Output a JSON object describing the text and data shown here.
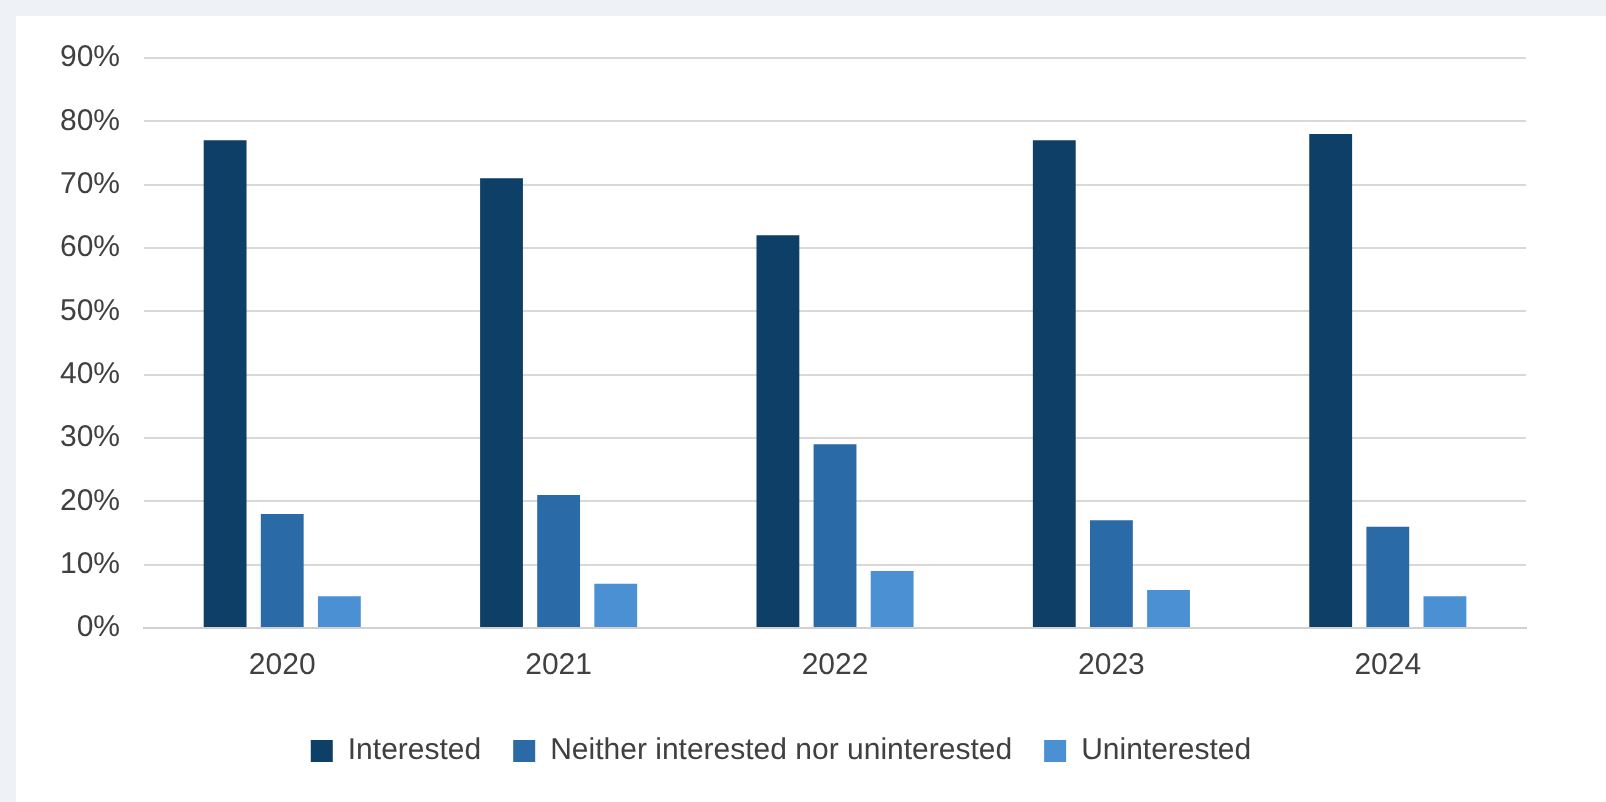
{
  "chart_data": {
    "type": "bar",
    "categories": [
      "2020",
      "2021",
      "2022",
      "2023",
      "2024"
    ],
    "series": [
      {
        "name": "Interested",
        "color": "#0e3f66",
        "values": [
          77,
          71,
          62,
          77,
          78
        ]
      },
      {
        "name": "Neither interested nor uninterested",
        "color": "#2a6aa6",
        "values": [
          18,
          21,
          29,
          17,
          16
        ]
      },
      {
        "name": "Uninterested",
        "color": "#4a90d2",
        "values": [
          5,
          7,
          9,
          6,
          5
        ]
      }
    ],
    "ylim": [
      0,
      90
    ],
    "yticks": [
      {
        "value": 0,
        "label": "0%"
      },
      {
        "value": 10,
        "label": "10%"
      },
      {
        "value": 20,
        "label": "20%"
      },
      {
        "value": 30,
        "label": "30%"
      },
      {
        "value": 40,
        "label": "40%"
      },
      {
        "value": 50,
        "label": "50%"
      },
      {
        "value": 60,
        "label": "60%"
      },
      {
        "value": 70,
        "label": "70%"
      },
      {
        "value": 80,
        "label": "80%"
      },
      {
        "value": 90,
        "label": "90%"
      }
    ],
    "grid": "y",
    "legend": "bottom"
  }
}
